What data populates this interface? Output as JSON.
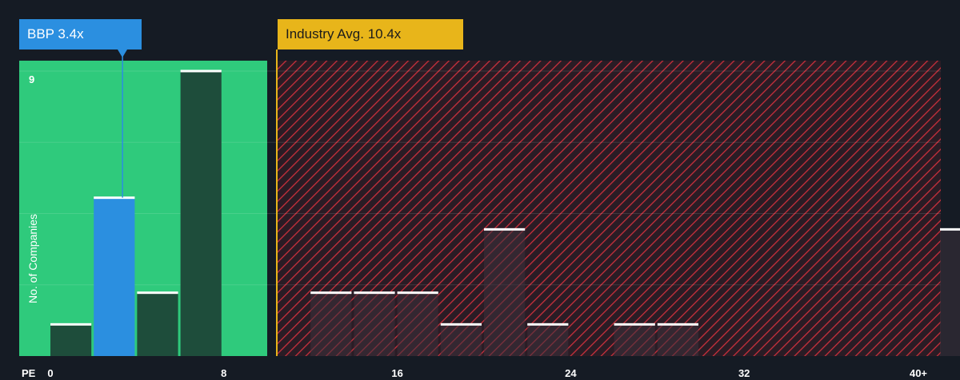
{
  "company_callout": "BBP 3.4x",
  "industry_callout": "Industry Avg. 10.4x",
  "colors": {
    "background": "#151b24",
    "fair_zone": "#2fca7c",
    "overvalued_zone": "#e84855",
    "company_bar": "#2b8fe0",
    "industry_line": "#e8b51a",
    "bar_fill": "#1e4d3b"
  },
  "chart_data": {
    "type": "bar",
    "title": "",
    "xlabel": "PE",
    "ylabel": "No. of Companies",
    "x_ticks": [
      "0",
      "8",
      "16",
      "24",
      "32",
      "40+"
    ],
    "y_ticks": [
      "9"
    ],
    "bin_width": 2,
    "bins": [
      {
        "x": 0,
        "count": 1
      },
      {
        "x": 2,
        "count": 5,
        "highlight": true
      },
      {
        "x": 4,
        "count": 2
      },
      {
        "x": 6,
        "count": 9
      },
      {
        "x": 12,
        "count": 2
      },
      {
        "x": 14,
        "count": 2
      },
      {
        "x": 16,
        "count": 2
      },
      {
        "x": 18,
        "count": 1
      },
      {
        "x": 20,
        "count": 4
      },
      {
        "x": 22,
        "count": 1
      },
      {
        "x": 26,
        "count": 1
      },
      {
        "x": 28,
        "count": 1
      },
      {
        "x": 40,
        "count": 4
      }
    ],
    "company_value": 3.4,
    "industry_avg": 10.4,
    "xlim": [
      0,
      41
    ],
    "ylim": [
      0,
      9.3
    ]
  }
}
